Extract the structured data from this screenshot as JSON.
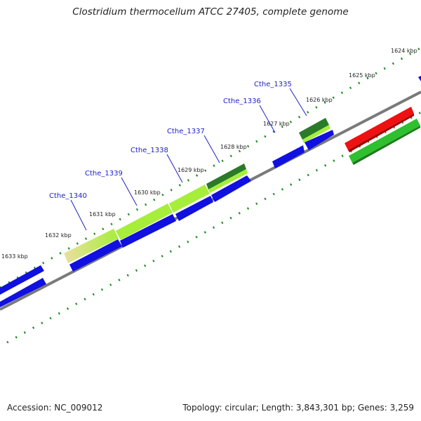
{
  "title": "Clostridium thermocellum ATCC 27405, complete genome",
  "footer": {
    "accession": "Accession: NC_009012",
    "summary": "Topology: circular; Length: 3,843,301 bp; Genes: 3,259"
  },
  "colors": {
    "backbone": "#7a7a7a",
    "dots": "#1d8a1d",
    "cds_blue": "#1010e0",
    "gene_label": "#1e22c8",
    "red": "#ee1111",
    "green": "#2ec02e",
    "lime": "#a6ee3a",
    "dark_green": "#2a7a2a",
    "tan": "#eadfa0"
  },
  "kbp_labels": [
    "1624 kbp",
    "1625 kbp",
    "1626 kbp",
    "1627 kbp",
    "1628 kbp",
    "1629 kbp",
    "1630 kbp",
    "1631 kbp",
    "1632 kbp",
    "1633 kbp"
  ],
  "gene_labels": [
    "Cthe_1335",
    "Cthe_1336",
    "Cthe_1337",
    "Cthe_1338",
    "Cthe_1339",
    "Cthe_1340"
  ]
}
